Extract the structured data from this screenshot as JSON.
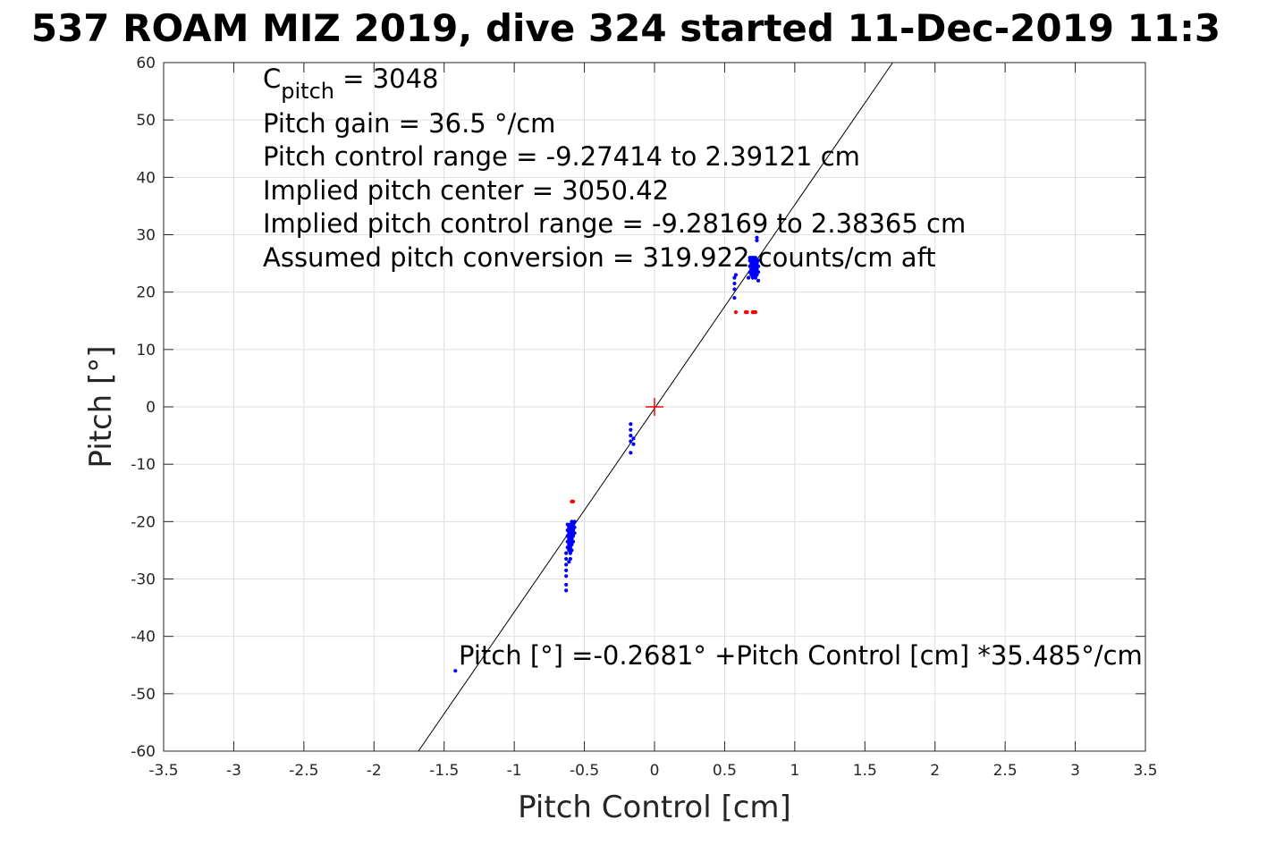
{
  "chart_data": {
    "type": "scatter",
    "title": "537 ROAM MIZ 2019, dive 324 started 11-Dec-2019 11:3",
    "xlabel": "Pitch Control [cm]",
    "ylabel": "Pitch [°]",
    "xlim": [
      -3.5,
      3.5
    ],
    "ylim": [
      -60,
      60
    ],
    "xticks": [
      -3.5,
      -3,
      -2.5,
      -2,
      -1.5,
      -1,
      -0.5,
      0,
      0.5,
      1,
      1.5,
      2,
      2.5,
      3,
      3.5
    ],
    "xtick_labels": [
      "-3.5",
      "-3",
      "-2.5",
      "-2",
      "-1.5",
      "-1",
      "-0.5",
      "0",
      "0.5",
      "1",
      "1.5",
      "2",
      "2.5",
      "3",
      "3.5"
    ],
    "yticks": [
      -60,
      -50,
      -40,
      -30,
      -20,
      -10,
      0,
      10,
      20,
      30,
      40,
      50,
      60
    ],
    "ytick_labels": [
      "-60",
      "-50",
      "-40",
      "-30",
      "-20",
      "-10",
      "0",
      "10",
      "20",
      "30",
      "40",
      "50",
      "60"
    ],
    "grid": true,
    "annotations": [
      {
        "text": "C",
        "sub": "pitch",
        "text2": " = 3048"
      },
      {
        "text": "Pitch gain = 36.5 °/cm"
      },
      {
        "text": "Pitch control range = -9.27414 to 2.39121 cm"
      },
      {
        "text": "Implied pitch center = 3050.42"
      },
      {
        "text": "Implied pitch control range = -9.28169 to 2.38365 cm"
      },
      {
        "text": "Assumed pitch conversion = 319.922 counts/cm aft"
      }
    ],
    "fit_label": "Pitch [°] =-0.2681° +Pitch Control [cm] *35.485°/cm",
    "fit_line": {
      "intercept": -0.2681,
      "slope": 35.485,
      "color": "#000000"
    },
    "center_marker": {
      "x": 0,
      "y": 0,
      "color": "#ff0000"
    },
    "colors": {
      "good": "#0000ff",
      "bad": "#ff0000"
    },
    "series": [
      {
        "color": "#0000ff",
        "points": [
          [
            -1.42,
            -46
          ],
          [
            -0.63,
            -32
          ],
          [
            -0.63,
            -31
          ],
          [
            -0.63,
            -29.5
          ],
          [
            -0.63,
            -28.5
          ],
          [
            -0.63,
            -27.5
          ],
          [
            -0.63,
            -26.5
          ],
          [
            -0.63,
            -25.5
          ],
          [
            -0.62,
            -24.5
          ],
          [
            -0.62,
            -23.5
          ],
          [
            -0.62,
            -22.5
          ],
          [
            -0.62,
            -21.5
          ],
          [
            -0.62,
            -20.5
          ],
          [
            -0.61,
            -27
          ],
          [
            -0.61,
            -25
          ],
          [
            -0.61,
            -24
          ],
          [
            -0.61,
            -23
          ],
          [
            -0.61,
            -22
          ],
          [
            -0.61,
            -21
          ],
          [
            -0.6,
            -26.5
          ],
          [
            -0.6,
            -25.5
          ],
          [
            -0.6,
            -24.5
          ],
          [
            -0.6,
            -23.5
          ],
          [
            -0.6,
            -22.5
          ],
          [
            -0.6,
            -21.5
          ],
          [
            -0.6,
            -20.5
          ],
          [
            -0.59,
            -25
          ],
          [
            -0.59,
            -24
          ],
          [
            -0.59,
            -23
          ],
          [
            -0.59,
            -22
          ],
          [
            -0.59,
            -21
          ],
          [
            -0.59,
            -20
          ],
          [
            -0.58,
            -23.5
          ],
          [
            -0.58,
            -22.5
          ],
          [
            -0.58,
            -21.5
          ],
          [
            -0.58,
            -20.5
          ],
          [
            -0.57,
            -22
          ],
          [
            -0.57,
            -21
          ],
          [
            -0.57,
            -20
          ],
          [
            -0.17,
            -3
          ],
          [
            -0.17,
            -4
          ],
          [
            -0.17,
            -5
          ],
          [
            -0.17,
            -6
          ],
          [
            -0.17,
            -8
          ],
          [
            -0.15,
            -5.5
          ],
          [
            -0.15,
            -6.5
          ],
          [
            0.57,
            19
          ],
          [
            0.57,
            20.5
          ],
          [
            0.57,
            21.5
          ],
          [
            0.57,
            22.5
          ],
          [
            0.58,
            23
          ],
          [
            0.67,
            22.5
          ],
          [
            0.68,
            23.5
          ],
          [
            0.68,
            24.5
          ],
          [
            0.68,
            25.5
          ],
          [
            0.68,
            26
          ],
          [
            0.69,
            23
          ],
          [
            0.69,
            24
          ],
          [
            0.69,
            25
          ],
          [
            0.69,
            26
          ],
          [
            0.7,
            22.5
          ],
          [
            0.7,
            23.5
          ],
          [
            0.7,
            24.5
          ],
          [
            0.7,
            25.5
          ],
          [
            0.7,
            26
          ],
          [
            0.71,
            23
          ],
          [
            0.71,
            24
          ],
          [
            0.71,
            25
          ],
          [
            0.71,
            26
          ],
          [
            0.72,
            22.5
          ],
          [
            0.72,
            23.5
          ],
          [
            0.72,
            24.5
          ],
          [
            0.72,
            25.5
          ],
          [
            0.72,
            26
          ],
          [
            0.73,
            29
          ],
          [
            0.73,
            29.5
          ],
          [
            0.73,
            23
          ],
          [
            0.73,
            24
          ],
          [
            0.73,
            25
          ],
          [
            0.74,
            22
          ],
          [
            0.74,
            23.5
          ],
          [
            0.74,
            24.5
          ],
          [
            0.74,
            25.5
          ]
        ]
      },
      {
        "color": "#ff0000",
        "points": [
          [
            -0.59,
            -16.5
          ],
          [
            -0.58,
            -16.5
          ],
          [
            0.58,
            16.5
          ],
          [
            0.65,
            16.5
          ],
          [
            0.66,
            16.5
          ],
          [
            0.7,
            16.5
          ],
          [
            0.71,
            16.5
          ],
          [
            0.72,
            16.5
          ]
        ]
      }
    ]
  }
}
